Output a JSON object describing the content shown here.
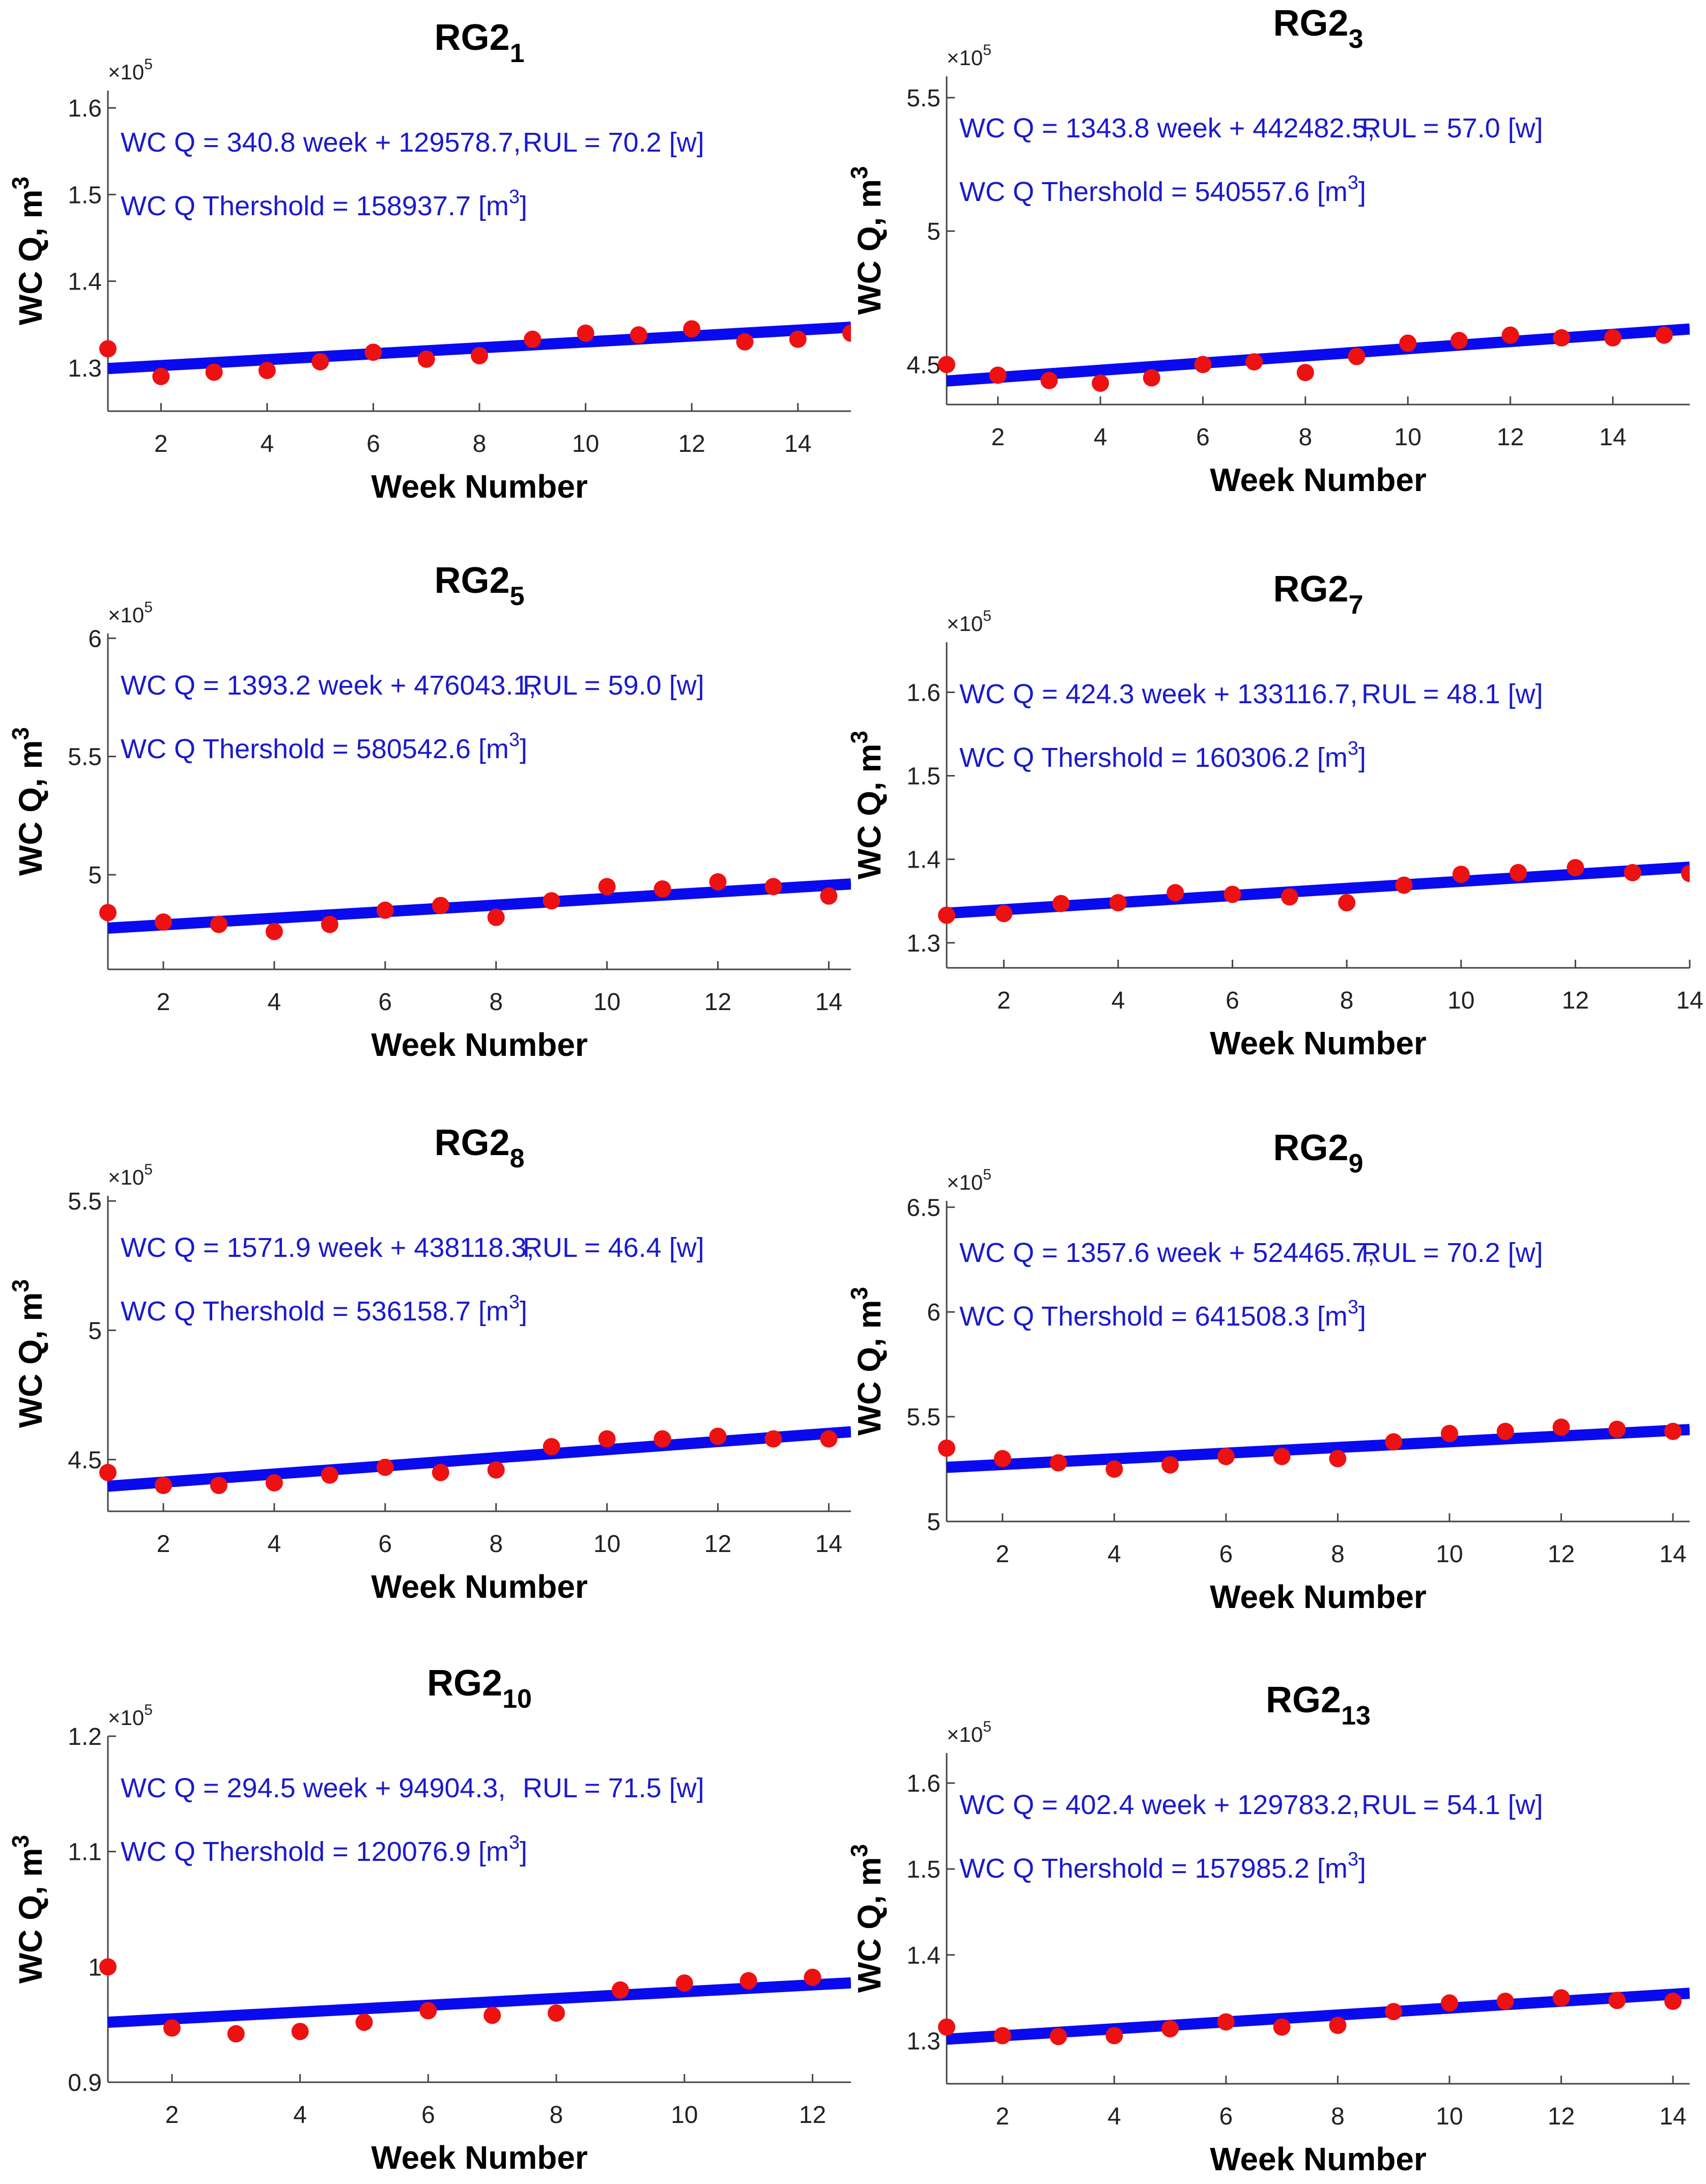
{
  "figure": {
    "colors": {
      "fit_line": "#0a0aee",
      "points": "#ee1111",
      "annotation": "#1a1acc"
    },
    "y_exponent_label": "×10",
    "y_exponent_power": "5",
    "y_label_main": "WC Q, m",
    "y_label_sup": "3"
  },
  "chart_data": [
    {
      "type": "scatter",
      "title_main": "RG2",
      "title_sub": "1",
      "xlabel": "Week Number",
      "xlim": [
        1,
        15
      ],
      "ylim": [
        1.25,
        1.62
      ],
      "xticks": [
        2,
        4,
        6,
        8,
        10,
        12,
        14
      ],
      "xtick_labels": [
        "2",
        "4",
        "6",
        "8",
        "10",
        "12",
        "14"
      ],
      "yticks": [
        1.3,
        1.4,
        1.5,
        1.6
      ],
      "ytick_labels": [
        "1.3",
        "1.4",
        "1.5",
        "1.6"
      ],
      "series": [
        {
          "x": [
            1,
            2,
            3,
            4,
            5,
            6,
            7,
            8,
            9,
            10,
            11,
            12,
            13,
            14,
            15
          ],
          "y": [
            1.322,
            1.29,
            1.295,
            1.297,
            1.307,
            1.318,
            1.31,
            1.314,
            1.333,
            1.34,
            1.338,
            1.345,
            1.33,
            1.333,
            1.34
          ]
        }
      ],
      "fit": {
        "slope": 340.8,
        "intercept": 129578.7
      },
      "annotation": {
        "eq": "WC Q = 340.8 week + 129578.7,",
        "rul": "RUL = 70.2 [w]",
        "thr": "WC Q Thershold = 158937.7 [m",
        "thr_sup": "3",
        "thr_close": "]"
      }
    },
    {
      "type": "scatter",
      "title_main": "RG2",
      "title_sub": "3",
      "xlabel": "Week Number",
      "xlim": [
        1,
        15.5
      ],
      "ylim": [
        4.35,
        5.58
      ],
      "xticks": [
        2,
        4,
        6,
        8,
        10,
        12,
        14
      ],
      "xtick_labels": [
        "2",
        "4",
        "6",
        "8",
        "10",
        "12",
        "14"
      ],
      "yticks": [
        4.5,
        5,
        5.5
      ],
      "ytick_labels": [
        "4.5",
        "5",
        "5.5"
      ],
      "series": [
        {
          "x": [
            1,
            2,
            3,
            4,
            5,
            6,
            7,
            8,
            9,
            10,
            11,
            12,
            13,
            14,
            15
          ],
          "y": [
            4.5,
            4.46,
            4.44,
            4.43,
            4.45,
            4.5,
            4.51,
            4.47,
            4.53,
            4.58,
            4.59,
            4.61,
            4.6,
            4.6,
            4.61
          ]
        }
      ],
      "fit": {
        "slope": 1343.8,
        "intercept": 442482.5
      },
      "annotation": {
        "eq": "WC Q = 1343.8 week + 442482.5,",
        "rul": "RUL = 57.0 [w]",
        "thr": "WC Q Thershold = 540557.6 [m",
        "thr_sup": "3",
        "thr_close": "]"
      }
    },
    {
      "type": "scatter",
      "title_main": "RG2",
      "title_sub": "5",
      "xlabel": "Week Number",
      "xlim": [
        1,
        14.4
      ],
      "ylim": [
        4.6,
        6.02
      ],
      "xticks": [
        2,
        4,
        6,
        8,
        10,
        12,
        14
      ],
      "xtick_labels": [
        "2",
        "4",
        "6",
        "8",
        "10",
        "12",
        "14"
      ],
      "yticks": [
        5,
        5.5,
        6
      ],
      "ytick_labels": [
        "5",
        "5.5",
        "6"
      ],
      "series": [
        {
          "x": [
            1,
            2,
            3,
            4,
            5,
            6,
            7,
            8,
            9,
            10,
            11,
            12,
            13,
            14
          ],
          "y": [
            4.84,
            4.8,
            4.79,
            4.76,
            4.79,
            4.85,
            4.87,
            4.82,
            4.89,
            4.95,
            4.94,
            4.97,
            4.95,
            4.91
          ]
        }
      ],
      "fit": {
        "slope": 1393.2,
        "intercept": 476043.1
      },
      "annotation": {
        "eq": "WC Q = 1393.2 week + 476043.1,",
        "rul": "RUL = 59.0 [w]",
        "thr": "WC Q Thershold = 580542.6 [m",
        "thr_sup": "3",
        "thr_close": "]"
      }
    },
    {
      "type": "scatter",
      "title_main": "RG2",
      "title_sub": "7",
      "xlabel": "Week Number",
      "xlim": [
        1,
        14.0
      ],
      "ylim": [
        1.27,
        1.66
      ],
      "xticks": [
        2,
        4,
        6,
        8,
        10,
        12,
        14
      ],
      "xtick_labels": [
        "2",
        "4",
        "6",
        "8",
        "10",
        "12",
        "14"
      ],
      "yticks": [
        1.3,
        1.4,
        1.5,
        1.6
      ],
      "ytick_labels": [
        "1.3",
        "1.4",
        "1.5",
        "1.6"
      ],
      "series": [
        {
          "x": [
            1,
            2,
            3,
            4,
            5,
            6,
            7,
            8,
            9,
            10,
            11,
            12,
            13,
            14
          ],
          "y": [
            1.333,
            1.335,
            1.347,
            1.348,
            1.36,
            1.358,
            1.355,
            1.348,
            1.369,
            1.382,
            1.384,
            1.39,
            1.384,
            1.383
          ]
        }
      ],
      "fit": {
        "slope": 424.3,
        "intercept": 133116.7
      },
      "annotation": {
        "eq": "WC Q = 424.3 week + 133116.7,",
        "rul": "RUL = 48.1 [w]",
        "thr": "WC Q Thershold = 160306.2 [m",
        "thr_sup": "3",
        "thr_close": "]"
      }
    },
    {
      "type": "scatter",
      "title_main": "RG2",
      "title_sub": "8",
      "xlabel": "Week Number",
      "xlim": [
        1,
        14.4
      ],
      "ylim": [
        4.3,
        5.52
      ],
      "xticks": [
        2,
        4,
        6,
        8,
        10,
        12,
        14
      ],
      "xtick_labels": [
        "2",
        "4",
        "6",
        "8",
        "10",
        "12",
        "14"
      ],
      "yticks": [
        4.5,
        5,
        5.5
      ],
      "ytick_labels": [
        "4.5",
        "5",
        "5.5"
      ],
      "series": [
        {
          "x": [
            1,
            2,
            3,
            4,
            5,
            6,
            7,
            8,
            9,
            10,
            11,
            12,
            13,
            14
          ],
          "y": [
            4.45,
            4.4,
            4.4,
            4.41,
            4.44,
            4.47,
            4.45,
            4.46,
            4.55,
            4.58,
            4.58,
            4.59,
            4.58,
            4.58
          ]
        }
      ],
      "fit": {
        "slope": 1571.9,
        "intercept": 438118.3
      },
      "annotation": {
        "eq": "WC Q = 1571.9 week + 438118.3,",
        "rul": "RUL = 46.4 [w]",
        "thr": "WC Q Thershold = 536158.7 [m",
        "thr_sup": "3",
        "thr_close": "]"
      }
    },
    {
      "type": "scatter",
      "title_main": "RG2",
      "title_sub": "9",
      "xlabel": "Week Number",
      "xlim": [
        1,
        14.3
      ],
      "ylim": [
        5.0,
        6.53
      ],
      "xticks": [
        2,
        4,
        6,
        8,
        10,
        12,
        14
      ],
      "xtick_labels": [
        "2",
        "4",
        "6",
        "8",
        "10",
        "12",
        "14"
      ],
      "yticks": [
        5,
        5.5,
        6,
        6.5
      ],
      "ytick_labels": [
        "5",
        "5.5",
        "6",
        "6.5"
      ],
      "series": [
        {
          "x": [
            1,
            2,
            3,
            4,
            5,
            6,
            7,
            8,
            9,
            10,
            11,
            12,
            13,
            14
          ],
          "y": [
            5.35,
            5.3,
            5.28,
            5.25,
            5.27,
            5.31,
            5.31,
            5.3,
            5.38,
            5.42,
            5.43,
            5.45,
            5.44,
            5.43
          ]
        }
      ],
      "fit": {
        "slope": 1357.6,
        "intercept": 524465.7
      },
      "annotation": {
        "eq": "WC Q = 1357.6 week + 524465.7,",
        "rul": "RUL = 70.2 [w]",
        "thr": "WC Q Thershold = 641508.3 [m",
        "thr_sup": "3",
        "thr_close": "]"
      }
    },
    {
      "type": "scatter",
      "title_main": "RG2",
      "title_sub": "10",
      "xlabel": "Week Number",
      "xlim": [
        1,
        12.6
      ],
      "ylim": [
        0.9,
        1.2
      ],
      "xticks": [
        2,
        4,
        6,
        8,
        10,
        12
      ],
      "xtick_labels": [
        "2",
        "4",
        "6",
        "8",
        "10",
        "12"
      ],
      "yticks": [
        0.9,
        1.0,
        1.1,
        1.2
      ],
      "ytick_labels": [
        "0.9",
        "1",
        "1.1",
        "1.2"
      ],
      "series": [
        {
          "x": [
            1,
            2,
            3,
            4,
            5,
            6,
            7,
            8,
            9,
            10,
            11,
            12
          ],
          "y": [
            1.0,
            0.947,
            0.942,
            0.944,
            0.952,
            0.962,
            0.958,
            0.96,
            0.98,
            0.986,
            0.988,
            0.991
          ]
        }
      ],
      "fit": {
        "slope": 294.5,
        "intercept": 94904.3
      },
      "annotation": {
        "eq": "WC Q = 294.5 week + 94904.3,",
        "rul": "RUL = 71.5 [w]",
        "thr": "WC Q Thershold = 120076.9 [m",
        "thr_sup": "3",
        "thr_close": "]"
      }
    },
    {
      "type": "scatter",
      "title_main": "RG2",
      "title_sub": "13",
      "xlabel": "Week Number",
      "xlim": [
        1,
        14.3
      ],
      "ylim": [
        1.25,
        1.635
      ],
      "xticks": [
        2,
        4,
        6,
        8,
        10,
        12,
        14
      ],
      "xtick_labels": [
        "2",
        "4",
        "6",
        "8",
        "10",
        "12",
        "14"
      ],
      "yticks": [
        1.3,
        1.4,
        1.5,
        1.6
      ],
      "ytick_labels": [
        "1.3",
        "1.4",
        "1.5",
        "1.6"
      ],
      "series": [
        {
          "x": [
            1,
            2,
            3,
            4,
            5,
            6,
            7,
            8,
            9,
            10,
            11,
            12,
            13,
            14
          ],
          "y": [
            1.316,
            1.306,
            1.305,
            1.306,
            1.314,
            1.322,
            1.316,
            1.318,
            1.334,
            1.344,
            1.346,
            1.35,
            1.347,
            1.346
          ]
        }
      ],
      "fit": {
        "slope": 402.4,
        "intercept": 129783.2
      },
      "annotation": {
        "eq": "WC Q = 402.4 week + 129783.2,",
        "rul": "RUL = 54.1 [w]",
        "thr": "WC Q Thershold = 157985.2 [m",
        "thr_sup": "3",
        "thr_close": "]"
      }
    }
  ]
}
